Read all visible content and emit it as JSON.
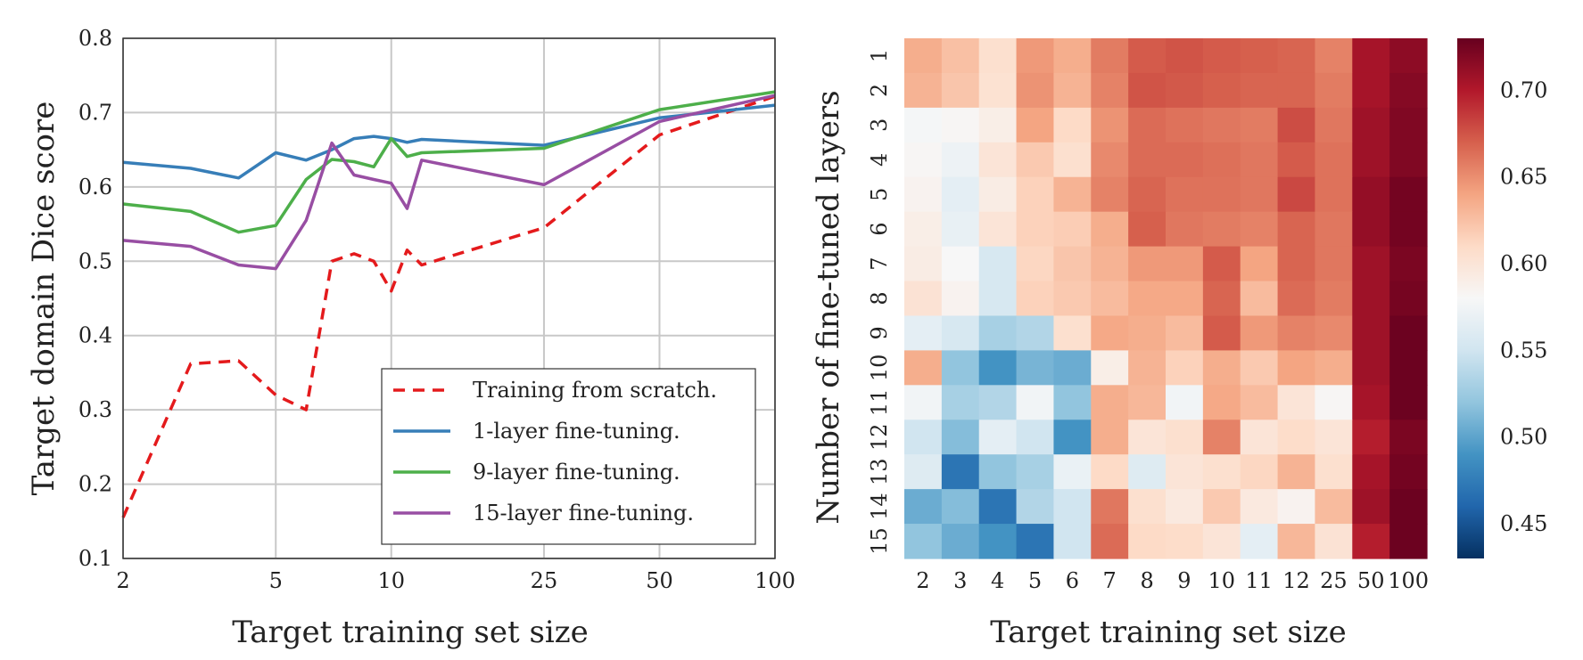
{
  "chart_data": [
    {
      "type": "line",
      "xlabel": "Target training set size",
      "ylabel": "Target domain  Dice score",
      "xscale": "log",
      "xlim": [
        2,
        100
      ],
      "ylim": [
        0.1,
        0.8
      ],
      "xticks": [
        2,
        5,
        10,
        25,
        50,
        100
      ],
      "xtick_labels": [
        "2",
        "5",
        "10",
        "25",
        "50",
        "100"
      ],
      "yticks": [
        0.1,
        0.2,
        0.3,
        0.4,
        0.5,
        0.6,
        0.7,
        0.8
      ],
      "ytick_labels": [
        "0.1",
        "0.2",
        "0.3",
        "0.4",
        "0.5",
        "0.6",
        "0.7",
        "0.8"
      ],
      "grid": true,
      "legend_position": "lower-right",
      "x": [
        2,
        3,
        4,
        5,
        6,
        7,
        8,
        9,
        10,
        11,
        12,
        25,
        50,
        100
      ],
      "series": [
        {
          "name": "Training from scratch.",
          "color": "#e41a1c",
          "dash": "dashed",
          "values": [
            0.155,
            0.362,
            0.366,
            0.32,
            0.3,
            0.5,
            0.51,
            0.5,
            0.46,
            0.515,
            0.495,
            0.545,
            0.67,
            0.722
          ]
        },
        {
          "name": "1-layer fine-tuning.",
          "color": "#377eb8",
          "dash": "solid",
          "values": [
            0.633,
            0.625,
            0.612,
            0.646,
            0.636,
            0.65,
            0.665,
            0.668,
            0.665,
            0.66,
            0.664,
            0.656,
            0.693,
            0.71
          ]
        },
        {
          "name": "9-layer fine-tuning.",
          "color": "#4daf4a",
          "dash": "solid",
          "values": [
            0.577,
            0.567,
            0.539,
            0.548,
            0.61,
            0.637,
            0.634,
            0.627,
            0.665,
            0.641,
            0.646,
            0.652,
            0.704,
            0.728
          ]
        },
        {
          "name": "15-layer fine-tuning.",
          "color": "#984ea3",
          "dash": "solid",
          "values": [
            0.528,
            0.52,
            0.495,
            0.49,
            0.555,
            0.659,
            0.616,
            0.61,
            0.605,
            0.571,
            0.636,
            0.603,
            0.688,
            0.723
          ]
        }
      ]
    },
    {
      "type": "heatmap",
      "xlabel": "Target training set size",
      "ylabel": "Number of fine-tuned layers",
      "x_categories": [
        "2",
        "3",
        "4",
        "5",
        "6",
        "7",
        "8",
        "9",
        "10",
        "11",
        "12",
        "25",
        "50",
        "100"
      ],
      "y_categories": [
        "1",
        "2",
        "3",
        "4",
        "5",
        "6",
        "7",
        "8",
        "9",
        "10",
        "11",
        "12",
        "13",
        "14",
        "15"
      ],
      "colormap": "RdBu_r",
      "vmin": 0.43,
      "vmax": 0.73,
      "colorbar_ticks": [
        0.45,
        0.5,
        0.55,
        0.6,
        0.65,
        0.7
      ],
      "colorbar_labels": [
        "0.45",
        "0.50",
        "0.55",
        "0.60",
        "0.65",
        "0.70"
      ],
      "values": [
        [
          0.635,
          0.625,
          0.605,
          0.645,
          0.635,
          0.658,
          0.672,
          0.675,
          0.672,
          0.67,
          0.668,
          0.655,
          0.705,
          0.715
        ],
        [
          0.632,
          0.622,
          0.603,
          0.648,
          0.632,
          0.655,
          0.675,
          0.673,
          0.67,
          0.668,
          0.668,
          0.658,
          0.705,
          0.718
        ],
        [
          0.578,
          0.582,
          0.59,
          0.64,
          0.61,
          0.648,
          0.665,
          0.662,
          0.66,
          0.658,
          0.678,
          0.66,
          0.708,
          0.72
        ],
        [
          0.582,
          0.572,
          0.6,
          0.62,
          0.605,
          0.652,
          0.665,
          0.665,
          0.663,
          0.66,
          0.672,
          0.662,
          0.708,
          0.72
        ],
        [
          0.585,
          0.565,
          0.592,
          0.615,
          0.632,
          0.655,
          0.668,
          0.662,
          0.662,
          0.66,
          0.68,
          0.662,
          0.712,
          0.725
        ],
        [
          0.59,
          0.568,
          0.6,
          0.615,
          0.618,
          0.635,
          0.67,
          0.66,
          0.658,
          0.655,
          0.668,
          0.66,
          0.712,
          0.725
        ],
        [
          0.592,
          0.58,
          0.555,
          0.612,
          0.622,
          0.632,
          0.645,
          0.645,
          0.672,
          0.64,
          0.668,
          0.66,
          0.708,
          0.722
        ],
        [
          0.602,
          0.585,
          0.555,
          0.615,
          0.62,
          0.628,
          0.638,
          0.638,
          0.668,
          0.628,
          0.665,
          0.658,
          0.708,
          0.724
        ],
        [
          0.565,
          0.555,
          0.53,
          0.535,
          0.605,
          0.638,
          0.635,
          0.628,
          0.672,
          0.645,
          0.655,
          0.652,
          0.708,
          0.728
        ],
        [
          0.635,
          0.52,
          0.49,
          0.51,
          0.505,
          0.59,
          0.632,
          0.615,
          0.635,
          0.62,
          0.64,
          0.635,
          0.708,
          0.728
        ],
        [
          0.575,
          0.53,
          0.535,
          0.575,
          0.52,
          0.635,
          0.63,
          0.575,
          0.638,
          0.628,
          0.6,
          0.582,
          0.705,
          0.728
        ],
        [
          0.55,
          0.515,
          0.565,
          0.55,
          0.49,
          0.635,
          0.6,
          0.605,
          0.655,
          0.6,
          0.608,
          0.6,
          0.698,
          0.722
        ],
        [
          0.56,
          0.47,
          0.52,
          0.53,
          0.57,
          0.61,
          0.56,
          0.6,
          0.605,
          0.612,
          0.632,
          0.605,
          0.705,
          0.725
        ],
        [
          0.505,
          0.515,
          0.47,
          0.535,
          0.55,
          0.66,
          0.605,
          0.595,
          0.62,
          0.595,
          0.585,
          0.628,
          0.708,
          0.728
        ],
        [
          0.52,
          0.505,
          0.49,
          0.47,
          0.55,
          0.665,
          0.61,
          0.608,
          0.6,
          0.565,
          0.63,
          0.602,
          0.698,
          0.728
        ]
      ]
    }
  ]
}
